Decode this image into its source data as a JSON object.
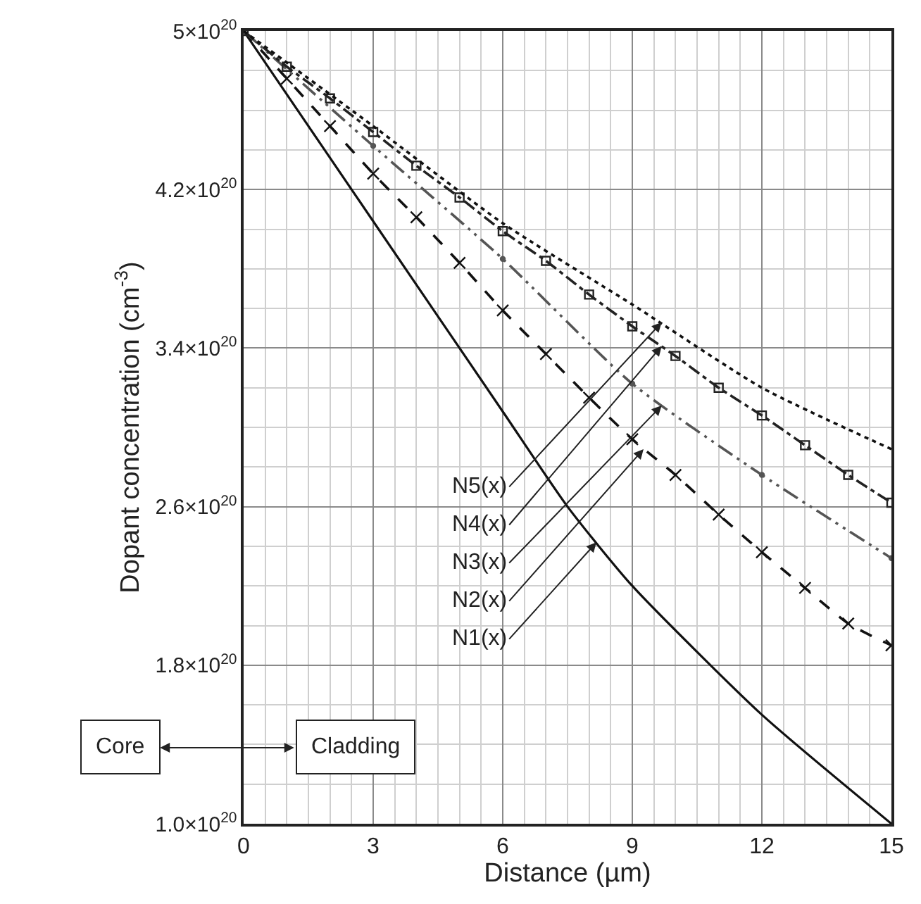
{
  "chart_data": {
    "type": "line",
    "xlabel": "Distance (µm)",
    "ylabel": "Dopant concentration (cm$^{-3}$)",
    "xlim": [
      0,
      15
    ],
    "xticks": [
      0,
      3,
      6,
      9,
      12,
      15
    ],
    "ylim": [
      1e+20,
      5e+20
    ],
    "yticks": [
      {
        "value": 1e+20,
        "label": "1.0×10$^{20}$"
      },
      {
        "value": 1.8e+20,
        "label": "1.8×10$^{20}$"
      },
      {
        "value": 2.6e+20,
        "label": "2.6×10$^{20}$"
      },
      {
        "value": 3.4e+20,
        "label": "3.4×10$^{20}$"
      },
      {
        "value": 4.2e+20,
        "label": "4.2×10$^{20}$"
      },
      {
        "value": 5e+20,
        "label": "5×10$^{20}$"
      }
    ],
    "grid": true,
    "series": [
      {
        "color": "#111111",
        "line_style": "solid",
        "marker": "none",
        "x": [
          0,
          3,
          6,
          7.5,
          9,
          12,
          15
        ],
        "values": [
          5e+20,
          4.04e+20,
          3.08e+20,
          2.6e+20,
          2.2e+20,
          1.55e+20,
          1e+20
        ]
      },
      {
        "color": "#111111",
        "line_style": "dashed",
        "marker": "cross",
        "x": [
          0,
          1,
          2,
          3,
          4,
          5,
          6,
          7,
          8,
          9,
          10,
          11,
          12,
          13,
          14,
          15
        ],
        "values": [
          5e+20,
          4.76e+20,
          4.52e+20,
          4.28e+20,
          4.06e+20,
          3.83e+20,
          3.59e+20,
          3.37e+20,
          3.15e+20,
          2.94e+20,
          2.76e+20,
          2.56e+20,
          2.37e+20,
          2.19e+20,
          2.01e+20,
          1.9e+20
        ]
      },
      {
        "color": "#555555",
        "line_style": "dashdotdot",
        "marker": "circle",
        "x": [
          0,
          3,
          6,
          9,
          12,
          15
        ],
        "values": [
          5e+20,
          4.42e+20,
          3.85e+20,
          3.22e+20,
          2.76e+20,
          2.34e+20
        ]
      },
      {
        "color": "#222222",
        "line_style": "dashdot",
        "marker": "square",
        "x": [
          0,
          1,
          2,
          3,
          4,
          5,
          6,
          7,
          8,
          9,
          10,
          11,
          12,
          13,
          14,
          15
        ],
        "values": [
          5e+20,
          4.82e+20,
          4.66e+20,
          4.49e+20,
          4.32e+20,
          4.16e+20,
          3.99e+20,
          3.84e+20,
          3.67e+20,
          3.51e+20,
          3.36e+20,
          3.2e+20,
          3.06e+20,
          2.91e+20,
          2.76e+20,
          2.62e+20
        ]
      },
      {
        "color": "#111111",
        "line_style": "dotted",
        "marker": "none",
        "x": [
          0,
          3,
          6,
          9,
          12,
          15
        ],
        "values": [
          5e+20,
          4.52e+20,
          4.03e+20,
          3.62e+20,
          3.2e+20,
          2.89e+20
        ]
      }
    ],
    "annotations": [
      {
        "text": "N5(x)",
        "x": 9.68,
        "y": 3.53e+20
      },
      {
        "text": "N4(x)",
        "x": 9.68,
        "y": 3.41e+20
      },
      {
        "text": "N3(x)",
        "x": 9.68,
        "y": 3.11e+20
      },
      {
        "text": "N2(x)",
        "x": 9.26,
        "y": 2.89e+20
      },
      {
        "text": "N1(x)",
        "x": 8.17,
        "y": 2.42e+20
      },
      "Core",
      "Cladding"
    ]
  }
}
